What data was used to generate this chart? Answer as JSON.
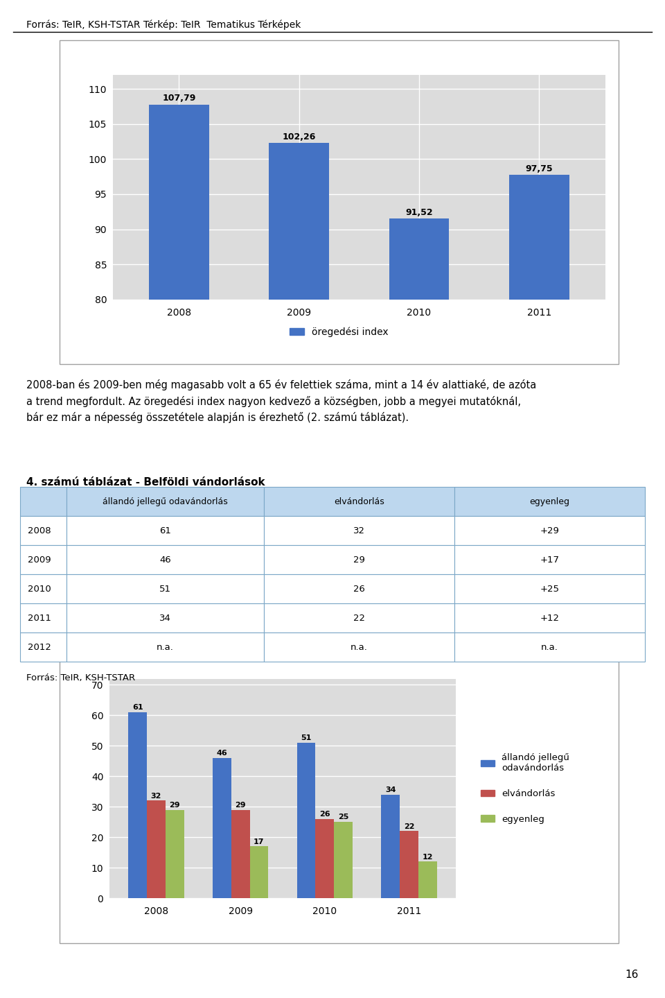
{
  "page_source": "Forrás: TeIR, KSH-TSTAR Térkép: TeIR  Tematikus Térképek",
  "chart1": {
    "years": [
      "2008",
      "2009",
      "2010",
      "2011"
    ],
    "values": [
      107.79,
      102.26,
      91.52,
      97.75
    ],
    "bar_color": "#4472C4",
    "legend_label": "öregedési index",
    "ylim": [
      80,
      112
    ],
    "yticks": [
      80,
      85,
      90,
      95,
      100,
      105,
      110
    ],
    "bar_width": 0.5
  },
  "paragraph_text": "2008-ban és 2009-ben még magasabb volt a 65 év felettiek száma, mint a 14 év alattiaké, de azóta\na trend megfordult. Az öregedési index nagyon kedvező a községben, jobb a megyei mutatóknál,\nbár ez már a népesség összetétele alapján is érezhető (2. számú táblázat).",
  "table_title": "4. számú táblázat - Belföldi vándorlások",
  "table": {
    "headers": [
      "",
      "állandó jellegű odavándorlás",
      "elvándorlás",
      "egyenleg"
    ],
    "rows": [
      [
        "2008",
        "61",
        "32",
        "+29"
      ],
      [
        "2009",
        "46",
        "29",
        "+17"
      ],
      [
        "2010",
        "51",
        "26",
        "+25"
      ],
      [
        "2011",
        "34",
        "22",
        "+12"
      ],
      [
        "2012",
        "n.a.",
        "n.a.",
        "n.a."
      ]
    ]
  },
  "table_source": "Forrás: TeIR, KSH-TSTAR",
  "chart2": {
    "years": [
      "2008",
      "2009",
      "2010",
      "2011"
    ],
    "series_names": [
      "állandó jellegű\nodavándorlás",
      "elvándorlás",
      "egyenleg"
    ],
    "series_values": [
      [
        61,
        46,
        51,
        34
      ],
      [
        32,
        29,
        26,
        22
      ],
      [
        29,
        17,
        25,
        12
      ]
    ],
    "colors": [
      "#4472C4",
      "#C0504D",
      "#9BBB59"
    ],
    "ylim": [
      0,
      72
    ],
    "yticks": [
      0,
      10,
      20,
      30,
      40,
      50,
      60,
      70
    ],
    "bar_width": 0.22
  },
  "page_number": "16",
  "background_color": "#FFFFFF",
  "chart_bg_color": "#DCDCDC",
  "header_color": "#BDD7EE",
  "row_color": "#FFFFFF",
  "border_color": "#A0A0A0"
}
